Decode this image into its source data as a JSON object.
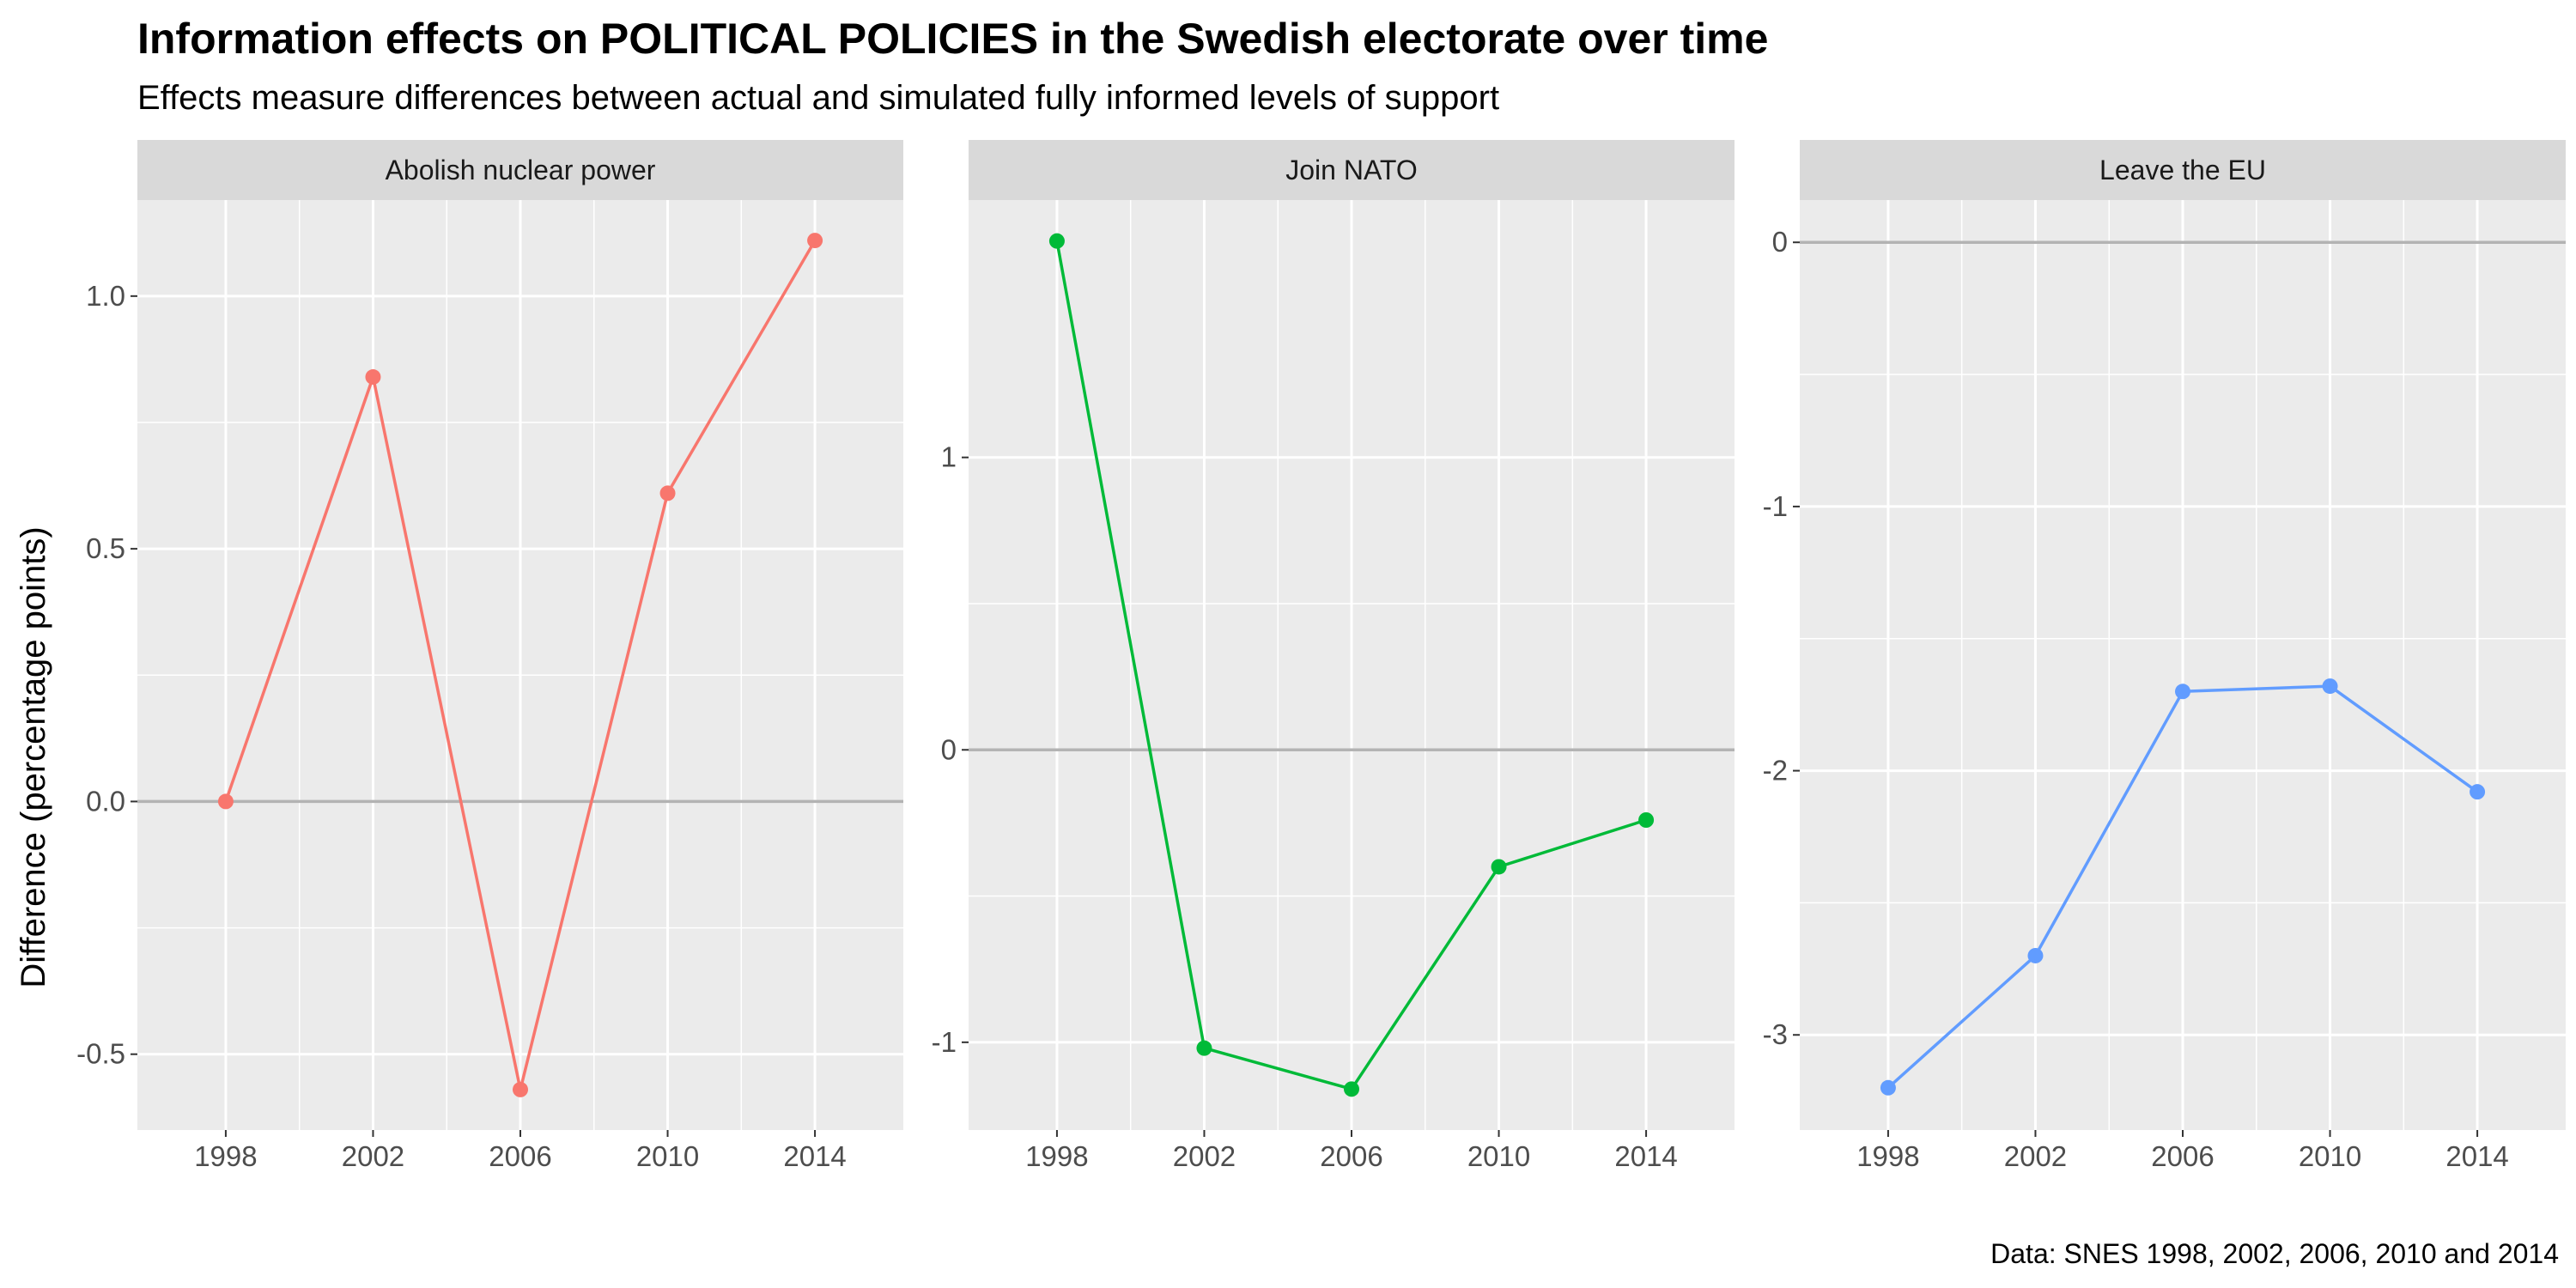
{
  "chart_data": {
    "type": "line",
    "title": "Information effects on POLITICAL POLICIES in the Swedish electorate over time",
    "subtitle": "Effects measure differences between actual and simulated fully informed levels of support",
    "ylabel": "Difference (percentage points)",
    "caption": "Data: SNES 1998, 2002, 2006, 2010 and 2014",
    "x": [
      1998,
      2002,
      2006,
      2010,
      2014
    ],
    "x_tick_labels": [
      "1998",
      "2002",
      "2006",
      "2010",
      "2014"
    ],
    "xlim": [
      1995.6,
      2016.4
    ],
    "grid": true,
    "reference_line_y": 0,
    "panels": [
      {
        "label": "Abolish nuclear power",
        "color": "#F8766D",
        "values": [
          0.0,
          0.84,
          -0.57,
          0.61,
          1.11
        ],
        "ylim": [
          -0.65,
          1.19
        ],
        "y_ticks": [
          -0.5,
          0.0,
          0.5,
          1.0
        ],
        "y_tick_labels": [
          "-0.5",
          "0.0",
          "0.5",
          "1.0"
        ]
      },
      {
        "label": "Join NATO",
        "color": "#00BA38",
        "values": [
          1.74,
          -1.02,
          -1.16,
          -0.4,
          -0.24
        ],
        "ylim": [
          -1.3,
          1.88
        ],
        "y_ticks": [
          -1,
          0,
          1
        ],
        "y_tick_labels": [
          "-1",
          "0",
          "1"
        ]
      },
      {
        "label": "Leave the EU",
        "color": "#619CFF",
        "values": [
          -3.2,
          -2.7,
          -1.7,
          -1.68,
          -2.08
        ],
        "ylim": [
          -3.36,
          0.16
        ],
        "y_ticks": [
          -3,
          -2,
          -1,
          0
        ],
        "y_tick_labels": [
          "-3",
          "-2",
          "-1",
          "0"
        ]
      }
    ]
  }
}
